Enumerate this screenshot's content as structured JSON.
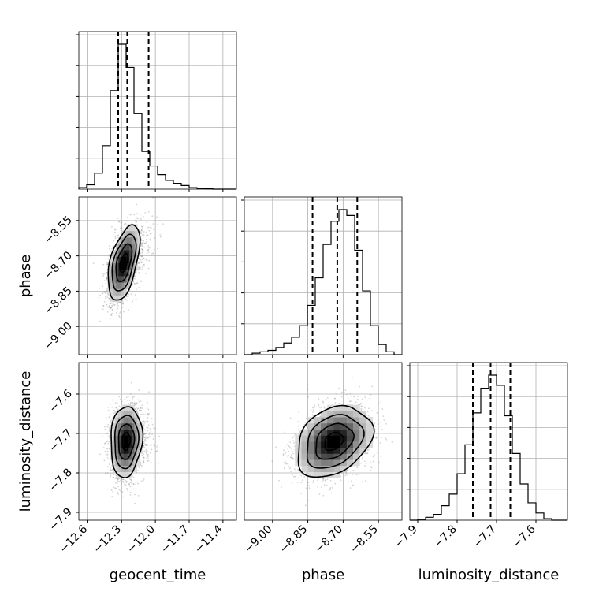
{
  "chart_data": {
    "type": "corner",
    "parameters": [
      "geocent_time",
      "phase",
      "luminosity_distance"
    ],
    "axis_labels": {
      "geocent_time": "geocent_time",
      "phase": "phase",
      "luminosity_distance": "luminosity_distance"
    },
    "ranges": {
      "geocent_time": [
        -12.68,
        -11.28
      ],
      "phase": [
        -9.12,
        -8.45
      ],
      "luminosity_distance": [
        -7.92,
        -7.52
      ]
    },
    "x_ticks": {
      "geocent_time": [
        -12.6,
        -12.3,
        -12.0,
        -11.7,
        -11.4
      ],
      "phase": [
        -9.0,
        -8.85,
        -8.7,
        -8.55
      ],
      "luminosity_distance": [
        -7.9,
        -7.8,
        -7.7,
        -7.6
      ]
    },
    "x_tick_labels": {
      "geocent_time": [
        "−12.6",
        "−12.3",
        "−12.0",
        "−11.7",
        "−11.4"
      ],
      "phase": [
        "−9.00",
        "−8.85",
        "−8.70",
        "−8.55"
      ],
      "luminosity_distance": [
        "−7.9",
        "−7.8",
        "−7.7",
        "−7.6"
      ]
    },
    "y_ticks": {
      "phase": [
        -8.55,
        -8.7,
        -8.85,
        -9.0
      ],
      "luminosity_distance": [
        -7.6,
        -7.7,
        -7.8,
        -7.9
      ]
    },
    "y_tick_labels": {
      "phase": [
        "−8.55",
        "−8.70",
        "−8.85",
        "−9.00"
      ],
      "luminosity_distance": [
        "−7.6",
        "−7.7",
        "−7.8",
        "−7.9"
      ]
    },
    "grid": true,
    "histograms": {
      "geocent_time": {
        "bin_edges": [
          -12.68,
          -12.61,
          -12.54,
          -12.47,
          -12.4,
          -12.33,
          -12.26,
          -12.19,
          -12.12,
          -12.05,
          -11.98,
          -11.91,
          -11.84,
          -11.77,
          -11.7,
          -11.63,
          -11.56,
          -11.49,
          -11.42,
          -11.35,
          -11.28
        ],
        "counts": [
          1,
          3,
          11,
          30,
          68,
          100,
          84,
          52,
          26,
          16,
          10,
          6,
          4,
          2.5,
          1,
          0.4,
          0.2,
          0,
          0,
          0
        ],
        "quantiles": [
          -12.33,
          -12.25,
          -12.06
        ]
      },
      "phase": {
        "bin_edges": [
          -9.12,
          -9.0865,
          -9.053,
          -9.0195,
          -8.986,
          -8.9525,
          -8.919,
          -8.8855,
          -8.852,
          -8.8185,
          -8.785,
          -8.7515,
          -8.718,
          -8.6845,
          -8.651,
          -8.6175,
          -8.584,
          -8.5505,
          -8.517,
          -8.4835,
          -8.45
        ],
        "counts": [
          0,
          1,
          2,
          3,
          5,
          8,
          12,
          20,
          34,
          53,
          76,
          92,
          100,
          96,
          72,
          44,
          20,
          7,
          2,
          0
        ],
        "quantiles": [
          -8.83,
          -8.725,
          -8.64
        ]
      },
      "luminosity_distance": {
        "bin_edges": [
          -7.92,
          -7.9,
          -7.88,
          -7.86,
          -7.84,
          -7.82,
          -7.8,
          -7.78,
          -7.76,
          -7.74,
          -7.72,
          -7.7,
          -7.68,
          -7.66,
          -7.64,
          -7.62,
          -7.6,
          -7.58,
          -7.56,
          -7.54,
          -7.52
        ],
        "counts": [
          0,
          0.5,
          2,
          4,
          10,
          18,
          32,
          52,
          74,
          91,
          100,
          93,
          72,
          46,
          25,
          12,
          5,
          1,
          0,
          0
        ],
        "quantiles": [
          -7.76,
          -7.715,
          -7.665
        ]
      }
    },
    "joint": [
      {
        "x": "geocent_time",
        "y": "phase",
        "center": [
          -12.28,
          -8.73
        ],
        "sigma": [
          0.07,
          0.08
        ],
        "rho": 0.5,
        "contour_levels_sigma": [
          0.5,
          1.0,
          1.5,
          2.0
        ]
      },
      {
        "x": "geocent_time",
        "y": "luminosity_distance",
        "center": [
          -12.26,
          -7.72
        ],
        "sigma": [
          0.07,
          0.045
        ],
        "rho": 0.1,
        "contour_levels_sigma": [
          0.5,
          1.0,
          1.5,
          2.0
        ]
      },
      {
        "x": "phase",
        "y": "luminosity_distance",
        "center": [
          -8.74,
          -7.72
        ],
        "sigma": [
          0.08,
          0.045
        ],
        "rho": 0.3,
        "contour_levels_sigma": [
          0.5,
          1.0,
          1.5,
          2.0
        ]
      }
    ]
  }
}
